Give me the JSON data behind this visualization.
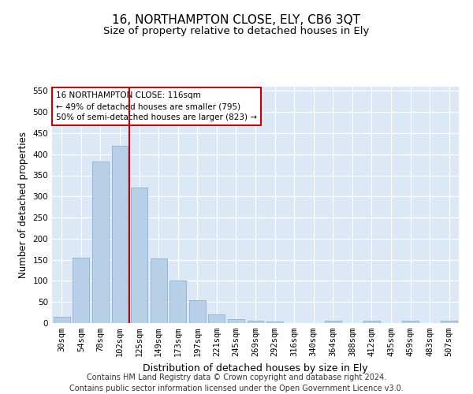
{
  "title": "16, NORTHAMPTON CLOSE, ELY, CB6 3QT",
  "subtitle": "Size of property relative to detached houses in Ely",
  "xlabel": "Distribution of detached houses by size in Ely",
  "ylabel": "Number of detached properties",
  "categories": [
    "30sqm",
    "54sqm",
    "78sqm",
    "102sqm",
    "125sqm",
    "149sqm",
    "173sqm",
    "197sqm",
    "221sqm",
    "245sqm",
    "269sqm",
    "292sqm",
    "316sqm",
    "340sqm",
    "364sqm",
    "388sqm",
    "412sqm",
    "435sqm",
    "459sqm",
    "483sqm",
    "507sqm"
  ],
  "values": [
    15,
    155,
    383,
    420,
    322,
    153,
    100,
    55,
    20,
    10,
    6,
    4,
    0,
    0,
    5,
    0,
    5,
    0,
    5,
    0,
    5
  ],
  "bar_color": "#b8cfe8",
  "bar_edgecolor": "#8aafd4",
  "annotation_text": "16 NORTHAMPTON CLOSE: 116sqm\n← 49% of detached houses are smaller (795)\n50% of semi-detached houses are larger (823) →",
  "annotation_box_edgecolor": "#cc0000",
  "annotation_box_facecolor": "#ffffff",
  "redline_color": "#cc0000",
  "redline_index": 3.5,
  "ylim": [
    0,
    560
  ],
  "yticks": [
    0,
    50,
    100,
    150,
    200,
    250,
    300,
    350,
    400,
    450,
    500,
    550
  ],
  "background_color": "#dce8f5",
  "footer_text": "Contains HM Land Registry data © Crown copyright and database right 2024.\nContains public sector information licensed under the Open Government Licence v3.0.",
  "title_fontsize": 11,
  "subtitle_fontsize": 9.5,
  "xlabel_fontsize": 9,
  "ylabel_fontsize": 8.5,
  "tick_fontsize": 7.5,
  "footer_fontsize": 7,
  "annotation_fontsize": 7.5
}
